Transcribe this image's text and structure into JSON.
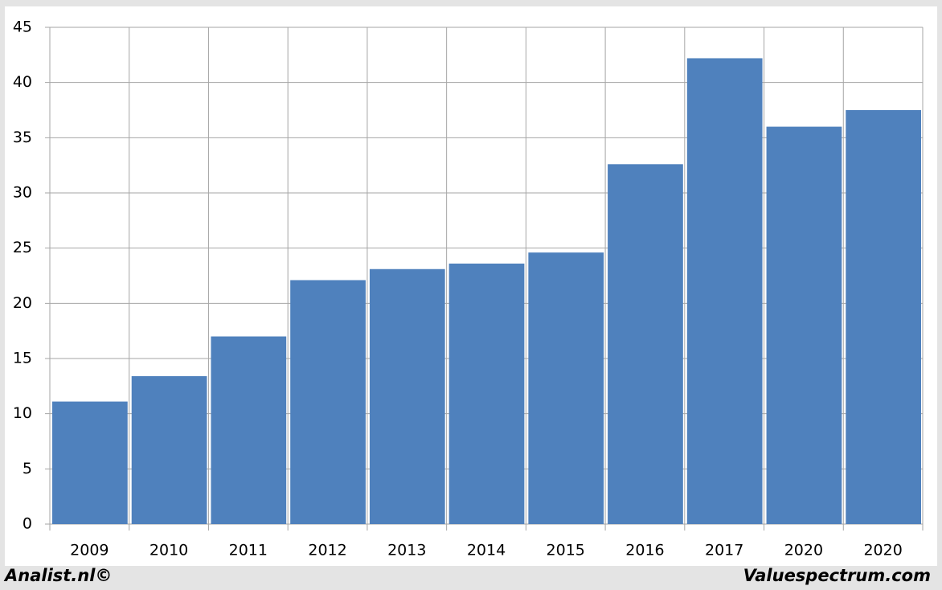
{
  "chart_data": {
    "type": "bar",
    "categories": [
      "2009",
      "2010",
      "2011",
      "2012",
      "2013",
      "2014",
      "2015",
      "2016",
      "2017",
      "2020",
      "2020"
    ],
    "values": [
      11.1,
      13.4,
      17.0,
      22.1,
      23.1,
      23.6,
      24.6,
      32.6,
      42.2,
      36.0,
      37.5
    ],
    "color": "#4f81bd",
    "ylim": [
      0,
      45
    ],
    "yticks": [
      0,
      5,
      10,
      15,
      20,
      25,
      30,
      35,
      40,
      45
    ],
    "grid": true,
    "source_left": "Analist.nl©",
    "source_right": "Valuespectrum.com"
  }
}
